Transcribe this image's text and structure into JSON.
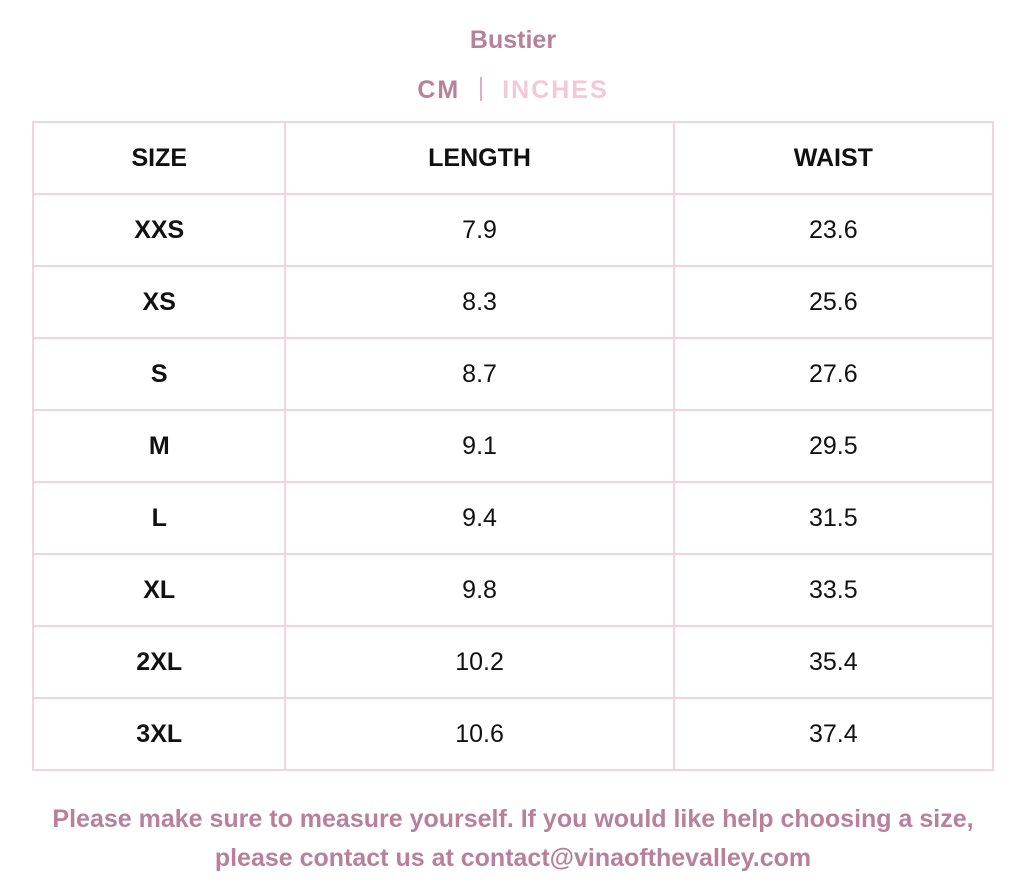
{
  "header": {
    "title": "Bustier"
  },
  "units": {
    "cm": "CM",
    "inches": "INCHES"
  },
  "table": {
    "columns": [
      "SIZE",
      "LENGTH",
      "WAIST"
    ],
    "rows": [
      [
        "XXS",
        "7.9",
        "23.6"
      ],
      [
        "XS",
        "8.3",
        "25.6"
      ],
      [
        "S",
        "8.7",
        "27.6"
      ],
      [
        "M",
        "9.1",
        "29.5"
      ],
      [
        "L",
        "9.4",
        "31.5"
      ],
      [
        "XL",
        "9.8",
        "33.5"
      ],
      [
        "2XL",
        "10.2",
        "35.4"
      ],
      [
        "3XL",
        "10.6",
        "37.4"
      ]
    ]
  },
  "footer": {
    "note": "Please make sure to measure yourself. If you would like help choosing a size, please contact us at contact@vinaofthevalley.com"
  }
}
